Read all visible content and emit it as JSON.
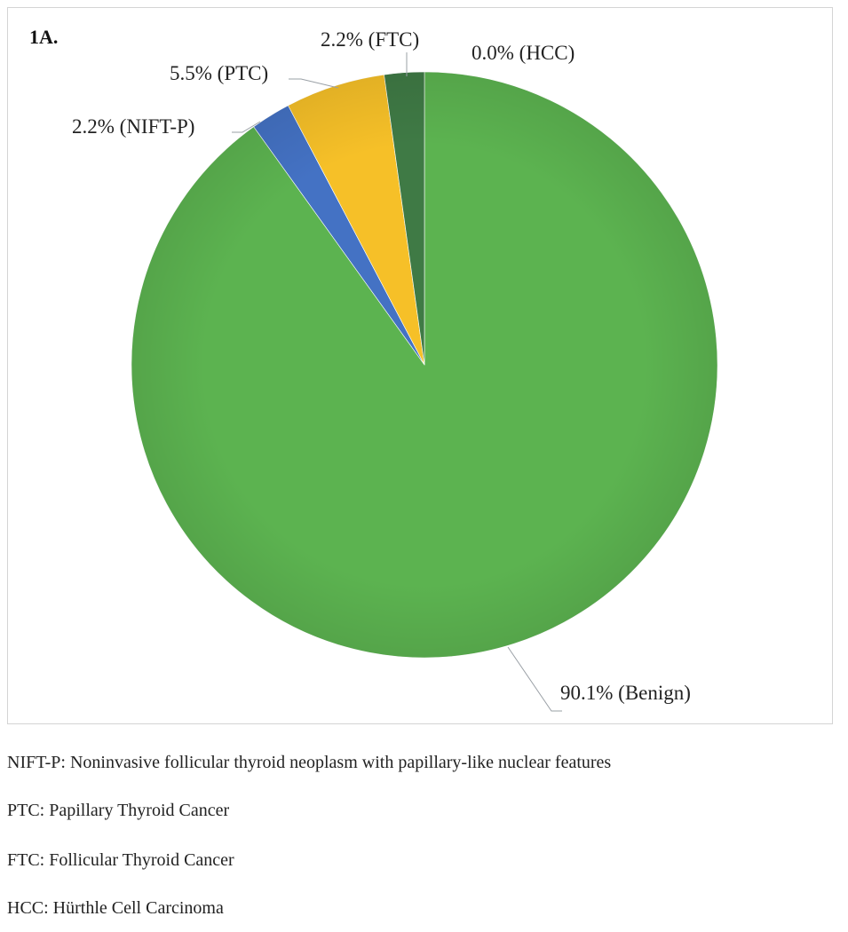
{
  "panel_label": "1A.",
  "chart_data": {
    "type": "pie",
    "title": "",
    "slices": [
      {
        "name": "HCC",
        "value": 0.0,
        "label": "0.0% (HCC)",
        "color": "#6aa84f"
      },
      {
        "name": "Benign",
        "value": 90.1,
        "label": "90.1% (Benign)",
        "color": "#5cb350"
      },
      {
        "name": "NIFT-P",
        "value": 2.2,
        "label": "2.2% (NIFT-P)",
        "color": "#4472c4"
      },
      {
        "name": "PTC",
        "value": 5.5,
        "label": "5.5%  (PTC)",
        "color": "#f6c028"
      },
      {
        "name": "FTC",
        "value": 2.2,
        "label": "2.2% (FTC)",
        "color": "#3f7a45"
      }
    ],
    "start_angle": "12 o'clock",
    "direction": "clockwise",
    "legend": "none"
  },
  "notes": [
    "NIFT-P: Noninvasive follicular thyroid neoplasm with papillary-like nuclear features",
    "PTC: Papillary Thyroid Cancer",
    "FTC: Follicular Thyroid Cancer",
    "HCC: Hürthle Cell Carcinoma"
  ]
}
